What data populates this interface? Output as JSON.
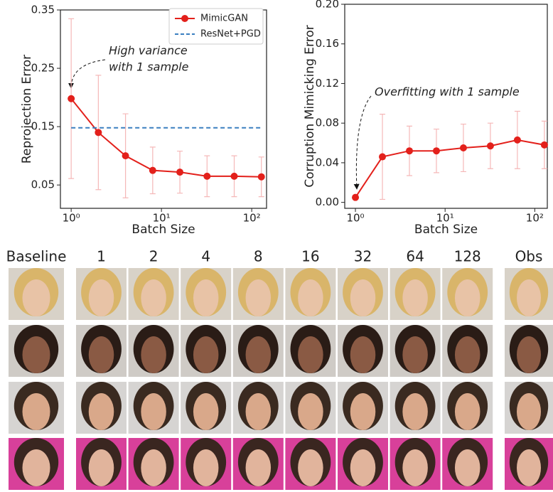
{
  "chart_data": [
    {
      "type": "line",
      "log_x": true,
      "xlabel": "Batch Size",
      "ylabel": "Reprojection Error",
      "xlim": [
        0.76,
        146
      ],
      "xticks": [
        {
          "value": 1,
          "label": "10⁰"
        },
        {
          "value": 10,
          "label": "10¹"
        },
        {
          "value": 100,
          "label": "10²"
        }
      ],
      "ylim": [
        0.01,
        0.35
      ],
      "yticks": [
        0.05,
        0.15,
        0.25,
        0.35
      ],
      "legend": "upper right",
      "annotation": [
        "High variance",
        "with 1 sample"
      ],
      "series": [
        {
          "name": "MimicGAN",
          "color": "#e3201b",
          "error_color": "#f5b8b8",
          "style": "solid",
          "x": [
            1,
            2,
            4,
            8,
            16,
            32,
            64,
            128
          ],
          "values": [
            0.198,
            0.14,
            0.1,
            0.075,
            0.072,
            0.065,
            0.065,
            0.064
          ],
          "errors": [
            0.137,
            0.098,
            0.072,
            0.04,
            0.036,
            0.035,
            0.035,
            0.034
          ]
        },
        {
          "name": "ResNet+PGD",
          "color": "#3a7fc0",
          "style": "dashed",
          "x": [
            1,
            128
          ],
          "values": [
            0.148,
            0.148
          ]
        }
      ]
    },
    {
      "type": "line",
      "log_x": true,
      "xlabel": "Batch Size",
      "ylabel": "Corruption Mimicking Error",
      "xlim": [
        0.76,
        138
      ],
      "xticks": [
        {
          "value": 1,
          "label": "10⁰"
        },
        {
          "value": 10,
          "label": "10¹"
        },
        {
          "value": 100,
          "label": "10²"
        }
      ],
      "ylim": [
        -0.006,
        0.2
      ],
      "yticks": [
        {
          "value": 0,
          "label": "0.00"
        },
        0.04,
        0.08,
        0.12,
        0.16,
        {
          "value": 0.2,
          "label": "0.20"
        }
      ],
      "annotation": [
        "Overfitting with 1 sample"
      ],
      "series": [
        {
          "name": "MimicGAN",
          "color": "#e3201b",
          "error_color": "#f5b8b8",
          "style": "solid",
          "x": [
            1,
            2,
            4,
            8,
            16,
            32,
            64,
            128
          ],
          "values": [
            0.005,
            0.046,
            0.052,
            0.052,
            0.055,
            0.057,
            0.063,
            0.058
          ],
          "errors": [
            0,
            0.043,
            0.025,
            0.022,
            0.024,
            0.023,
            0.029,
            0.024
          ]
        }
      ]
    }
  ],
  "figure": {
    "column_labels": [
      "Baseline",
      "1",
      "2",
      "4",
      "8",
      "16",
      "32",
      "64",
      "128",
      "Obs"
    ]
  }
}
